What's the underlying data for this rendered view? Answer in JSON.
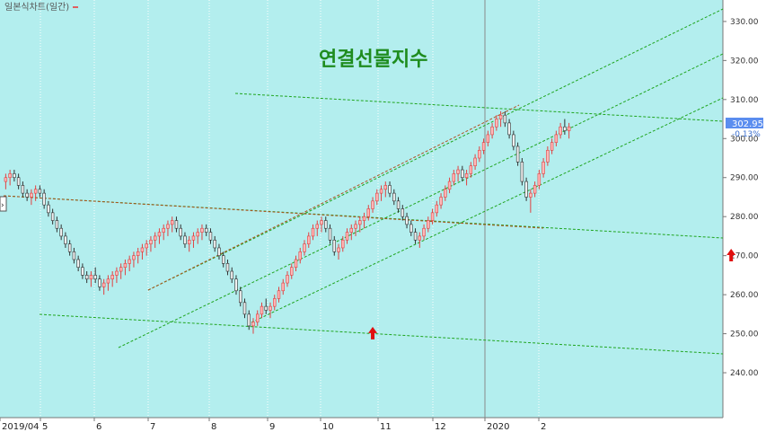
{
  "window": {
    "legend": "일본식차트(일간)"
  },
  "chart_data": {
    "type": "candlestick",
    "title": "연결선물지수",
    "y_ticks": [
      240,
      250,
      260,
      270,
      280,
      290,
      300,
      310,
      320,
      330
    ],
    "ylim": [
      228.5,
      335.5
    ],
    "x_labels": [
      "2019/04",
      "5",
      "6",
      "7",
      "8",
      "9",
      "10",
      "11",
      "12",
      "2020",
      "2"
    ],
    "price_tag": {
      "value": "302.95",
      "change": "-0.13%"
    },
    "arrows": [
      {
        "x_index": 86,
        "y": 252
      },
      {
        "x_index": 170,
        "y": 272
      }
    ],
    "series": [
      {
        "type": "candles",
        "ohlc": [
          [
            289,
            291,
            287,
            290
          ],
          [
            290,
            292,
            288,
            291
          ],
          [
            291,
            292,
            289,
            290
          ],
          [
            290,
            291,
            287,
            288
          ],
          [
            288,
            289,
            285,
            286
          ],
          [
            286,
            287,
            284,
            285
          ],
          [
            285,
            287,
            283,
            286
          ],
          [
            286,
            288,
            284,
            287
          ],
          [
            287,
            288,
            285,
            286
          ],
          [
            286,
            287,
            282,
            283
          ],
          [
            283,
            284,
            280,
            281
          ],
          [
            281,
            282,
            278,
            279
          ],
          [
            279,
            280,
            276,
            277
          ],
          [
            277,
            278,
            274,
            275
          ],
          [
            275,
            276,
            272,
            273
          ],
          [
            273,
            274,
            270,
            271
          ],
          [
            271,
            272,
            268,
            269
          ],
          [
            269,
            270,
            266,
            267
          ],
          [
            267,
            268,
            264,
            265
          ],
          [
            265,
            266,
            263,
            264
          ],
          [
            264,
            266,
            262,
            265
          ],
          [
            265,
            267,
            263,
            264
          ],
          [
            264,
            265,
            261,
            262
          ],
          [
            262,
            264,
            260,
            263
          ],
          [
            263,
            265,
            261,
            264
          ],
          [
            264,
            266,
            262,
            265
          ],
          [
            265,
            267,
            263,
            266
          ],
          [
            266,
            268,
            264,
            267
          ],
          [
            267,
            269,
            265,
            268
          ],
          [
            268,
            270,
            266,
            269
          ],
          [
            269,
            271,
            267,
            270
          ],
          [
            270,
            272,
            268,
            271
          ],
          [
            271,
            273,
            269,
            272
          ],
          [
            272,
            274,
            270,
            273
          ],
          [
            273,
            275,
            271,
            274
          ],
          [
            274,
            276,
            272,
            275
          ],
          [
            275,
            277,
            273,
            276
          ],
          [
            276,
            278,
            274,
            277
          ],
          [
            277,
            279,
            275,
            278
          ],
          [
            278,
            280,
            276,
            279
          ],
          [
            279,
            280,
            276,
            277
          ],
          [
            277,
            278,
            274,
            275
          ],
          [
            275,
            276,
            272,
            273
          ],
          [
            273,
            275,
            271,
            274
          ],
          [
            274,
            276,
            272,
            275
          ],
          [
            275,
            277,
            273,
            276
          ],
          [
            276,
            278,
            274,
            277
          ],
          [
            277,
            278,
            275,
            276
          ],
          [
            276,
            277,
            273,
            274
          ],
          [
            274,
            275,
            271,
            272
          ],
          [
            272,
            273,
            269,
            270
          ],
          [
            270,
            271,
            267,
            268
          ],
          [
            268,
            269,
            265,
            266
          ],
          [
            266,
            267,
            263,
            264
          ],
          [
            264,
            265,
            260,
            261
          ],
          [
            261,
            262,
            257,
            258
          ],
          [
            258,
            259,
            254,
            255
          ],
          [
            255,
            256,
            251,
            252
          ],
          [
            252,
            254,
            250,
            253
          ],
          [
            253,
            256,
            252,
            255
          ],
          [
            255,
            258,
            254,
            257
          ],
          [
            257,
            259,
            255,
            256
          ],
          [
            256,
            258,
            254,
            257
          ],
          [
            257,
            260,
            256,
            259
          ],
          [
            259,
            262,
            258,
            261
          ],
          [
            261,
            264,
            260,
            263
          ],
          [
            263,
            266,
            262,
            265
          ],
          [
            265,
            268,
            264,
            267
          ],
          [
            267,
            270,
            266,
            269
          ],
          [
            269,
            272,
            268,
            271
          ],
          [
            271,
            274,
            270,
            273
          ],
          [
            273,
            276,
            272,
            275
          ],
          [
            275,
            278,
            274,
            277
          ],
          [
            277,
            279,
            275,
            278
          ],
          [
            278,
            280,
            276,
            279
          ],
          [
            279,
            280,
            276,
            277
          ],
          [
            277,
            278,
            273,
            274
          ],
          [
            274,
            275,
            270,
            271
          ],
          [
            271,
            273,
            269,
            272
          ],
          [
            272,
            275,
            271,
            274
          ],
          [
            274,
            277,
            273,
            276
          ],
          [
            276,
            278,
            274,
            277
          ],
          [
            277,
            279,
            275,
            278
          ],
          [
            278,
            280,
            276,
            279
          ],
          [
            279,
            281,
            277,
            280
          ],
          [
            280,
            283,
            279,
            282
          ],
          [
            282,
            285,
            281,
            284
          ],
          [
            284,
            287,
            283,
            286
          ],
          [
            286,
            288,
            284,
            287
          ],
          [
            287,
            289,
            285,
            288
          ],
          [
            288,
            289,
            285,
            286
          ],
          [
            286,
            287,
            283,
            284
          ],
          [
            284,
            285,
            281,
            282
          ],
          [
            282,
            283,
            279,
            280
          ],
          [
            280,
            281,
            277,
            278
          ],
          [
            278,
            279,
            275,
            276
          ],
          [
            276,
            277,
            273,
            274
          ],
          [
            274,
            276,
            272,
            275
          ],
          [
            275,
            278,
            274,
            277
          ],
          [
            277,
            280,
            276,
            279
          ],
          [
            279,
            282,
            278,
            281
          ],
          [
            281,
            284,
            280,
            283
          ],
          [
            283,
            286,
            282,
            285
          ],
          [
            285,
            288,
            284,
            287
          ],
          [
            287,
            290,
            286,
            289
          ],
          [
            289,
            292,
            288,
            291
          ],
          [
            291,
            293,
            289,
            292
          ],
          [
            292,
            293,
            289,
            290
          ],
          [
            290,
            292,
            288,
            291
          ],
          [
            291,
            294,
            290,
            293
          ],
          [
            293,
            296,
            292,
            295
          ],
          [
            295,
            298,
            294,
            297
          ],
          [
            297,
            300,
            296,
            299
          ],
          [
            299,
            302,
            298,
            301
          ],
          [
            301,
            304,
            300,
            303
          ],
          [
            303,
            306,
            302,
            305
          ],
          [
            305,
            307,
            303,
            306
          ],
          [
            306,
            307,
            303,
            304
          ],
          [
            304,
            305,
            300,
            301
          ],
          [
            301,
            302,
            297,
            298
          ],
          [
            298,
            299,
            293,
            294
          ],
          [
            294,
            295,
            288,
            289
          ],
          [
            289,
            290,
            284,
            285
          ],
          [
            285,
            287,
            281,
            286
          ],
          [
            286,
            289,
            285,
            288
          ],
          [
            288,
            292,
            287,
            291
          ],
          [
            291,
            295,
            290,
            294
          ],
          [
            294,
            298,
            293,
            297
          ],
          [
            297,
            300,
            296,
            299
          ],
          [
            299,
            302,
            298,
            301
          ],
          [
            301,
            304,
            300,
            303
          ],
          [
            303,
            305,
            301,
            302
          ],
          [
            302,
            304,
            300,
            303
          ]
        ]
      }
    ],
    "overlays": [
      {
        "name": "upper-channel-line",
        "points": [
          [
            138,
            326
          ],
          [
            775,
            332
          ]
        ]
      }
    ]
  }
}
